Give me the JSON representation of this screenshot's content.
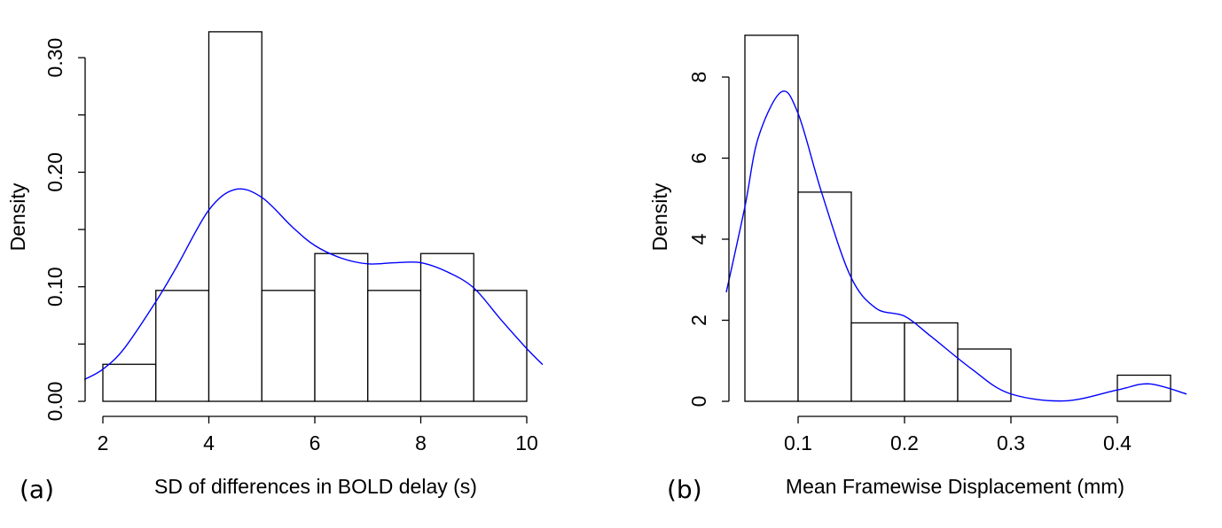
{
  "chart_data": [
    {
      "type": "bar",
      "panel_label": "(a)",
      "xlabel": "SD of differences in BOLD delay (s)",
      "ylabel": "Density",
      "bin_edges": [
        2,
        3,
        4,
        5,
        6,
        7,
        8,
        9,
        10
      ],
      "values": [
        0.0323,
        0.0968,
        0.3226,
        0.0968,
        0.129,
        0.0968,
        0.129,
        0.0968
      ],
      "xticks": [
        2,
        4,
        6,
        8,
        10
      ],
      "xtick_labels": [
        "2",
        "4",
        "6",
        "8",
        "10"
      ],
      "yticks": [
        0,
        0.05,
        0.1,
        0.15,
        0.2,
        0.25,
        0.3
      ],
      "ytick_labels": [
        "0.00",
        "",
        "0.10",
        "",
        "0.20",
        "",
        "0.30"
      ],
      "ylim": [
        0,
        0.3
      ],
      "density_curve": {
        "color": "#0000ff",
        "x": [
          1.65,
          2,
          2.4,
          3,
          3.4,
          4,
          4.5,
          5,
          5.58,
          6,
          6.5,
          7,
          7.5,
          8,
          8.5,
          9,
          9.5,
          10,
          10.3
        ],
        "y": [
          0.019,
          0.028,
          0.046,
          0.087,
          0.118,
          0.167,
          0.185,
          0.178,
          0.152,
          0.136,
          0.125,
          0.12,
          0.121,
          0.121,
          0.113,
          0.099,
          0.072,
          0.046,
          0.032
        ]
      },
      "grid": false
    },
    {
      "type": "bar",
      "panel_label": "(b)",
      "xlabel": "Mean Framewise Displacement (mm)",
      "ylabel": "Density",
      "bin_edges": [
        0.05,
        0.1,
        0.15,
        0.2,
        0.25,
        0.3,
        0.35,
        0.4,
        0.45
      ],
      "values": [
        9.032,
        5.161,
        1.935,
        1.935,
        1.29,
        0,
        0,
        0.645
      ],
      "xticks": [
        0.1,
        0.2,
        0.3,
        0.4
      ],
      "xtick_labels": [
        "0.1",
        "0.2",
        "0.3",
        "0.4"
      ],
      "yticks": [
        0,
        2,
        4,
        6,
        8
      ],
      "ytick_labels": [
        "0",
        "2",
        "4",
        "6",
        "8"
      ],
      "ylim": [
        0,
        8
      ],
      "density_curve": {
        "color": "#0000ff",
        "x": [
          0.0325,
          0.05,
          0.0625,
          0.084,
          0.1,
          0.122,
          0.149,
          0.173,
          0.2,
          0.225,
          0.263,
          0.298,
          0.35,
          0.4,
          0.43,
          0.465
        ],
        "y": [
          2.69,
          4.8,
          6.5,
          7.63,
          7.1,
          5.16,
          3.1,
          2.3,
          2.1,
          1.6,
          0.8,
          0.2,
          0.01,
          0.28,
          0.43,
          0.18
        ]
      },
      "grid": false
    }
  ]
}
